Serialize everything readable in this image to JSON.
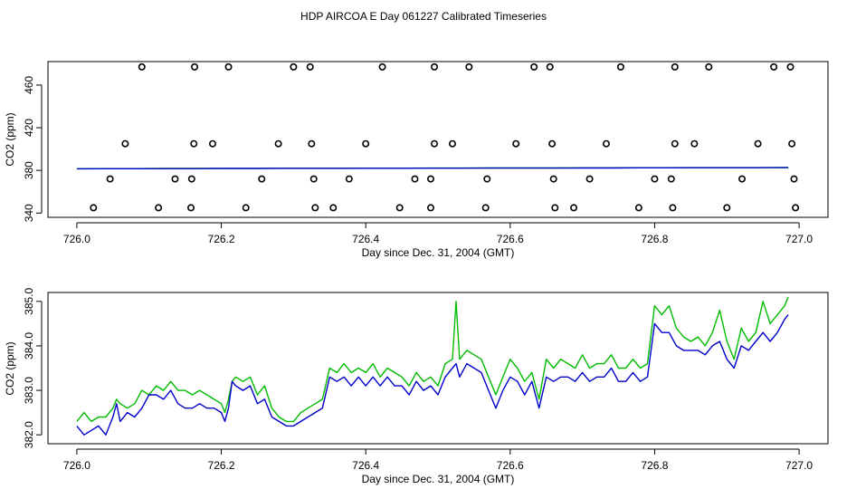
{
  "chart_data": [
    {
      "type": "scatter",
      "title": "HDP AIRCOA E  Day 061227  Calibrated Timeseries",
      "xlabel": "Day since Dec. 31, 2004 (GMT)",
      "ylabel": "CO2 (ppm)",
      "xlim": [
        725.96,
        727.04
      ],
      "ylim": [
        336,
        482
      ],
      "xticks": [
        726.0,
        726.2,
        726.4,
        726.6,
        726.8,
        727.0
      ],
      "xtick_labels": [
        "726.0",
        "726.2",
        "726.4",
        "726.6",
        "726.8",
        "727.0"
      ],
      "yticks": [
        340,
        380,
        420,
        460
      ],
      "ytick_labels": [
        "340",
        "380",
        "420",
        "460"
      ],
      "series": [
        {
          "name": "reference-standards",
          "marker": "open-circle",
          "color": "#000000",
          "points": [
            [
              726.09,
              477
            ],
            [
              726.163,
              477
            ],
            [
              726.21,
              477
            ],
            [
              726.3,
              477
            ],
            [
              726.323,
              477
            ],
            [
              726.423,
              477
            ],
            [
              726.495,
              477
            ],
            [
              726.543,
              477
            ],
            [
              726.633,
              477
            ],
            [
              726.655,
              477
            ],
            [
              726.753,
              477
            ],
            [
              726.828,
              477
            ],
            [
              726.875,
              477
            ],
            [
              726.965,
              477
            ],
            [
              726.988,
              477
            ],
            [
              726.067,
              405
            ],
            [
              726.162,
              405
            ],
            [
              726.188,
              405
            ],
            [
              726.279,
              405
            ],
            [
              726.325,
              405
            ],
            [
              726.4,
              405
            ],
            [
              726.495,
              405
            ],
            [
              726.52,
              405
            ],
            [
              726.608,
              405
            ],
            [
              726.658,
              405
            ],
            [
              726.733,
              405
            ],
            [
              726.828,
              405
            ],
            [
              726.855,
              405
            ],
            [
              726.943,
              405
            ],
            [
              726.99,
              405
            ],
            [
              726.046,
              372
            ],
            [
              726.136,
              372
            ],
            [
              726.159,
              372
            ],
            [
              726.256,
              372
            ],
            [
              726.328,
              372
            ],
            [
              726.377,
              372
            ],
            [
              726.468,
              372
            ],
            [
              726.49,
              372
            ],
            [
              726.568,
              372
            ],
            [
              726.66,
              372
            ],
            [
              726.71,
              372
            ],
            [
              726.8,
              372
            ],
            [
              726.823,
              372
            ],
            [
              726.921,
              372
            ],
            [
              726.993,
              372
            ],
            [
              726.023,
              345
            ],
            [
              726.113,
              345
            ],
            [
              726.158,
              345
            ],
            [
              726.234,
              345
            ],
            [
              726.33,
              345
            ],
            [
              726.355,
              345
            ],
            [
              726.447,
              345
            ],
            [
              726.49,
              345
            ],
            [
              726.566,
              345
            ],
            [
              726.662,
              345
            ],
            [
              726.688,
              345
            ],
            [
              726.778,
              345
            ],
            [
              726.825,
              345
            ],
            [
              726.9,
              345
            ],
            [
              726.995,
              345
            ]
          ]
        },
        {
          "name": "ambient-green",
          "color": "#00bb00",
          "x0": 726.0,
          "x1": 726.985,
          "values": [
            381.6,
            381.7,
            381.7,
            381.8,
            381.8,
            381.9,
            381.9,
            382.0,
            382.0,
            382.0,
            382.1,
            382.1,
            382.2,
            382.2,
            382.3,
            382.3,
            382.3,
            382.4,
            382.4,
            382.5,
            382.5,
            382.6,
            382.6,
            382.6,
            382.7
          ]
        },
        {
          "name": "ambient-blue",
          "color": "#0000cc",
          "x0": 726.0,
          "x1": 726.985,
          "values": [
            381.5,
            381.6,
            381.6,
            381.7,
            381.7,
            381.8,
            381.8,
            381.9,
            381.9,
            381.9,
            382.0,
            382.0,
            382.1,
            382.1,
            382.2,
            382.2,
            382.2,
            382.3,
            382.3,
            382.4,
            382.4,
            382.5,
            382.5,
            382.5,
            382.6
          ]
        }
      ]
    },
    {
      "type": "line",
      "xlabel": "Day since Dec. 31, 2004 (GMT)",
      "ylabel": "CO2 (ppm)",
      "xlim": [
        725.96,
        727.04
      ],
      "ylim": [
        381.8,
        385.2
      ],
      "xticks": [
        726.0,
        726.2,
        726.4,
        726.6,
        726.8,
        727.0
      ],
      "xtick_labels": [
        "726.0",
        "726.2",
        "726.4",
        "726.6",
        "726.8",
        "727.0"
      ],
      "yticks": [
        382.0,
        383.0,
        384.0,
        385.0
      ],
      "ytick_labels": [
        "382.0",
        "383.0",
        "384.0",
        "385.0"
      ],
      "series": [
        {
          "name": "green",
          "color": "#00bb00",
          "x": [
            726.0,
            726.01,
            726.02,
            726.03,
            726.04,
            726.05,
            726.055,
            726.06,
            726.07,
            726.08,
            726.09,
            726.1,
            726.11,
            726.12,
            726.13,
            726.14,
            726.15,
            726.16,
            726.17,
            726.18,
            726.19,
            726.2,
            726.205,
            726.21,
            726.215,
            726.22,
            726.23,
            726.24,
            726.25,
            726.26,
            726.27,
            726.28,
            726.29,
            726.3,
            726.31,
            726.32,
            726.33,
            726.34,
            726.35,
            726.36,
            726.37,
            726.38,
            726.39,
            726.4,
            726.41,
            726.42,
            726.43,
            726.44,
            726.45,
            726.46,
            726.47,
            726.48,
            726.49,
            726.5,
            726.51,
            726.52,
            726.525,
            726.53,
            726.54,
            726.55,
            726.56,
            726.57,
            726.58,
            726.59,
            726.6,
            726.61,
            726.62,
            726.63,
            726.64,
            726.65,
            726.66,
            726.67,
            726.68,
            726.69,
            726.7,
            726.71,
            726.72,
            726.73,
            726.74,
            726.75,
            726.76,
            726.77,
            726.78,
            726.79,
            726.8,
            726.81,
            726.82,
            726.83,
            726.84,
            726.85,
            726.86,
            726.87,
            726.88,
            726.89,
            726.9,
            726.91,
            726.92,
            726.93,
            726.94,
            726.95,
            726.96,
            726.97,
            726.98,
            726.985
          ],
          "values": [
            382.3,
            382.5,
            382.3,
            382.4,
            382.4,
            382.6,
            382.8,
            382.7,
            382.6,
            382.7,
            383.0,
            382.9,
            383.1,
            383.0,
            383.2,
            383.0,
            383.0,
            382.9,
            383.0,
            382.9,
            382.8,
            382.7,
            382.5,
            382.8,
            383.2,
            383.3,
            383.2,
            383.3,
            382.9,
            383.1,
            382.6,
            382.4,
            382.3,
            382.3,
            382.5,
            382.6,
            382.7,
            382.8,
            383.5,
            383.4,
            383.6,
            383.4,
            383.5,
            383.4,
            383.6,
            383.3,
            383.5,
            383.4,
            383.3,
            383.1,
            383.4,
            383.2,
            383.3,
            383.1,
            383.6,
            383.7,
            385.0,
            383.7,
            383.9,
            383.8,
            383.7,
            383.3,
            382.9,
            383.3,
            383.7,
            383.5,
            383.2,
            383.4,
            382.8,
            383.7,
            383.5,
            383.7,
            383.6,
            383.5,
            383.8,
            383.5,
            383.6,
            383.6,
            383.8,
            383.5,
            383.5,
            383.7,
            383.5,
            383.6,
            384.9,
            384.7,
            384.9,
            384.4,
            384.2,
            384.1,
            384.2,
            384.0,
            384.3,
            384.8,
            384.1,
            383.7,
            384.4,
            384.1,
            384.3,
            385.0,
            384.5,
            384.7,
            384.9,
            385.1
          ]
        },
        {
          "name": "blue",
          "color": "#0000cc",
          "x": [
            726.0,
            726.01,
            726.02,
            726.03,
            726.04,
            726.05,
            726.055,
            726.06,
            726.07,
            726.08,
            726.09,
            726.1,
            726.11,
            726.12,
            726.13,
            726.14,
            726.15,
            726.16,
            726.17,
            726.18,
            726.19,
            726.2,
            726.205,
            726.21,
            726.215,
            726.22,
            726.23,
            726.24,
            726.25,
            726.26,
            726.27,
            726.28,
            726.29,
            726.3,
            726.31,
            726.32,
            726.33,
            726.34,
            726.35,
            726.36,
            726.37,
            726.38,
            726.39,
            726.4,
            726.41,
            726.42,
            726.43,
            726.44,
            726.45,
            726.46,
            726.47,
            726.48,
            726.49,
            726.5,
            726.51,
            726.52,
            726.525,
            726.53,
            726.54,
            726.55,
            726.56,
            726.57,
            726.58,
            726.59,
            726.6,
            726.61,
            726.62,
            726.63,
            726.64,
            726.65,
            726.66,
            726.67,
            726.68,
            726.69,
            726.7,
            726.71,
            726.72,
            726.73,
            726.74,
            726.75,
            726.76,
            726.77,
            726.78,
            726.79,
            726.8,
            726.81,
            726.82,
            726.83,
            726.84,
            726.85,
            726.86,
            726.87,
            726.88,
            726.89,
            726.9,
            726.91,
            726.92,
            726.93,
            726.94,
            726.95,
            726.96,
            726.97,
            726.98,
            726.985
          ],
          "values": [
            382.2,
            382.0,
            382.1,
            382.2,
            382.0,
            382.4,
            382.7,
            382.3,
            382.5,
            382.4,
            382.6,
            382.9,
            382.9,
            382.8,
            383.0,
            382.7,
            382.6,
            382.6,
            382.7,
            382.6,
            382.6,
            382.5,
            382.3,
            382.6,
            383.2,
            383.1,
            383.0,
            383.1,
            382.7,
            382.8,
            382.4,
            382.3,
            382.2,
            382.2,
            382.3,
            382.4,
            382.5,
            382.6,
            383.3,
            383.2,
            383.3,
            383.1,
            383.3,
            383.1,
            383.3,
            383.1,
            383.3,
            383.1,
            383.1,
            382.9,
            383.2,
            383.0,
            383.1,
            382.9,
            383.3,
            383.5,
            383.6,
            383.3,
            383.6,
            383.5,
            383.4,
            383.0,
            382.6,
            383.0,
            383.3,
            383.2,
            382.9,
            383.2,
            382.6,
            383.3,
            383.2,
            383.3,
            383.3,
            383.2,
            383.4,
            383.2,
            383.3,
            383.3,
            383.5,
            383.2,
            383.2,
            383.4,
            383.2,
            383.3,
            384.5,
            384.3,
            384.3,
            384.0,
            383.9,
            383.9,
            383.9,
            383.8,
            384.0,
            384.1,
            383.7,
            383.5,
            384.0,
            383.9,
            384.1,
            384.3,
            384.1,
            384.3,
            384.6,
            384.7
          ]
        }
      ]
    }
  ]
}
